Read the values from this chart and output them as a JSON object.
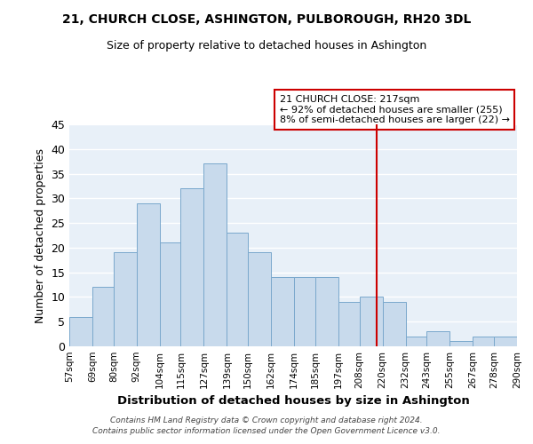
{
  "title": "21, CHURCH CLOSE, ASHINGTON, PULBOROUGH, RH20 3DL",
  "subtitle": "Size of property relative to detached houses in Ashington",
  "xlabel": "Distribution of detached houses by size in Ashington",
  "ylabel": "Number of detached properties",
  "bar_color": "#c8daec",
  "bar_edge_color": "#7aa8cc",
  "background_color": "#e8f0f8",
  "grid_color": "#ffffff",
  "annotation_box_edge": "#cc0000",
  "vline_color": "#cc0000",
  "annotation_title": "21 CHURCH CLOSE: 217sqm",
  "annotation_line1": "← 92% of detached houses are smaller (255)",
  "annotation_line2": "8% of semi-detached houses are larger (22) →",
  "footer1": "Contains HM Land Registry data © Crown copyright and database right 2024.",
  "footer2": "Contains public sector information licensed under the Open Government Licence v3.0.",
  "bins": [
    57,
    69,
    80,
    92,
    104,
    115,
    127,
    139,
    150,
    162,
    174,
    185,
    197,
    208,
    220,
    232,
    243,
    255,
    267,
    278,
    290
  ],
  "counts": [
    6,
    12,
    19,
    29,
    21,
    32,
    37,
    23,
    19,
    14,
    14,
    14,
    9,
    10,
    9,
    2,
    3,
    1,
    2,
    2
  ],
  "vline_x": 217,
  "ylim": [
    0,
    45
  ],
  "yticks": [
    0,
    5,
    10,
    15,
    20,
    25,
    30,
    35,
    40,
    45
  ]
}
